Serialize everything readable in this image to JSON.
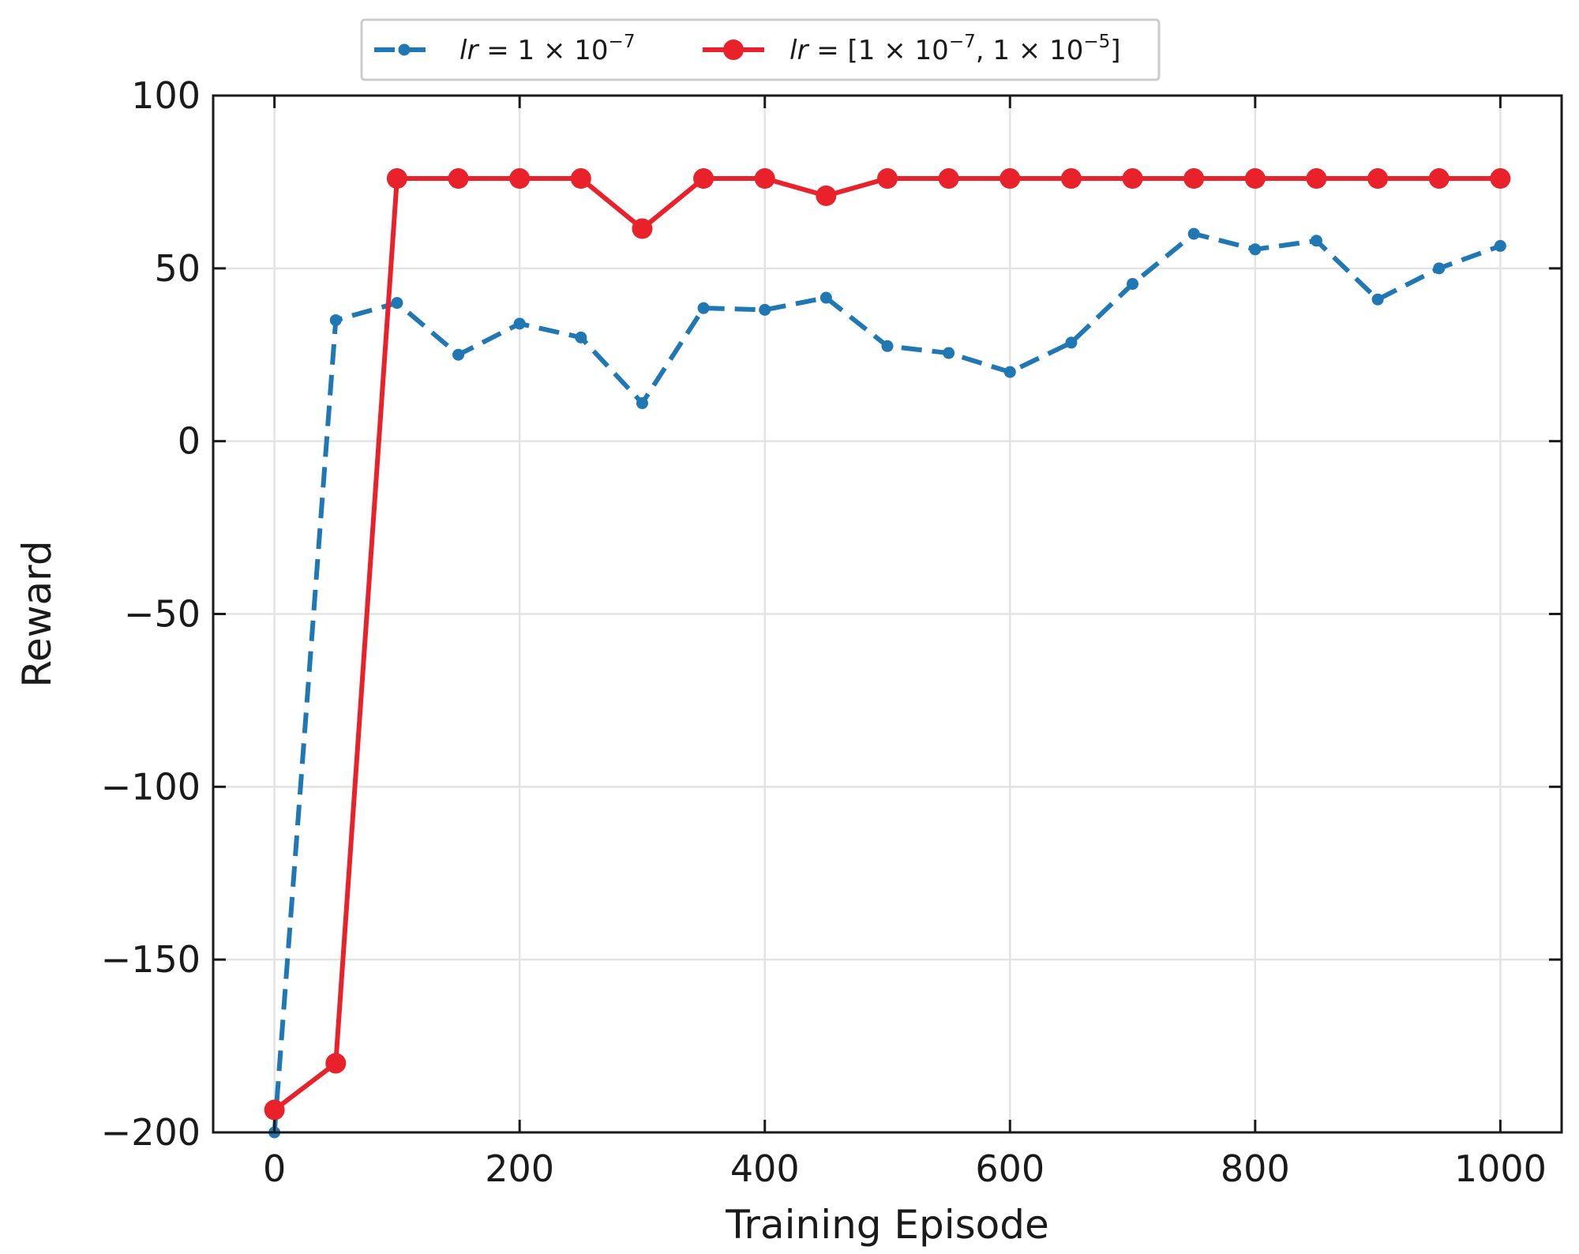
{
  "chart_data": {
    "type": "line",
    "xlabel": "Training Episode",
    "ylabel": "Reward",
    "xlim": [
      -50,
      1050
    ],
    "ylim": [
      -200,
      100
    ],
    "xticks": [
      0,
      200,
      400,
      600,
      800,
      1000
    ],
    "yticks": [
      -200,
      -150,
      -100,
      -50,
      0,
      50,
      100
    ],
    "xtick_labels": [
      "0",
      "200",
      "400",
      "600",
      "800",
      "1000"
    ],
    "ytick_labels": [
      "−200",
      "−150",
      "−100",
      "−50",
      "0",
      "50",
      "100"
    ],
    "grid": true,
    "legend_position": "top-center, above plot",
    "x": [
      0,
      50,
      100,
      150,
      200,
      250,
      300,
      350,
      400,
      450,
      500,
      550,
      600,
      650,
      700,
      750,
      800,
      850,
      900,
      950,
      1000
    ],
    "series": [
      {
        "name": "lr = 1 × 10⁻⁷",
        "legend_parts": {
          "var": "lr",
          "eq": " = 1 × 10",
          "exp": "−7"
        },
        "color": "#1f77b4",
        "line_style": "dashed",
        "marker": "small-circle",
        "values": [
          -200,
          35,
          40,
          25,
          34,
          30,
          11,
          38.5,
          38,
          41.5,
          27.5,
          25.5,
          20,
          28.5,
          45.5,
          60,
          55.5,
          58,
          41,
          50,
          56.5
        ]
      },
      {
        "name": "lr = [1 × 10⁻⁷, 1 × 10⁻⁵]",
        "legend_parts": {
          "var": "lr",
          "eq1": " = [1 × 10",
          "exp1": "−7",
          "eq2": ", 1 × 10",
          "exp2": "−5",
          "end": "]"
        },
        "color": "#e8212a",
        "line_style": "solid",
        "marker": "large-circle",
        "values": [
          -193.5,
          -180,
          76,
          76,
          76,
          76,
          61.5,
          76,
          76,
          71,
          76,
          76,
          76,
          76,
          76,
          76,
          76,
          76,
          76,
          76,
          76
        ]
      }
    ]
  }
}
